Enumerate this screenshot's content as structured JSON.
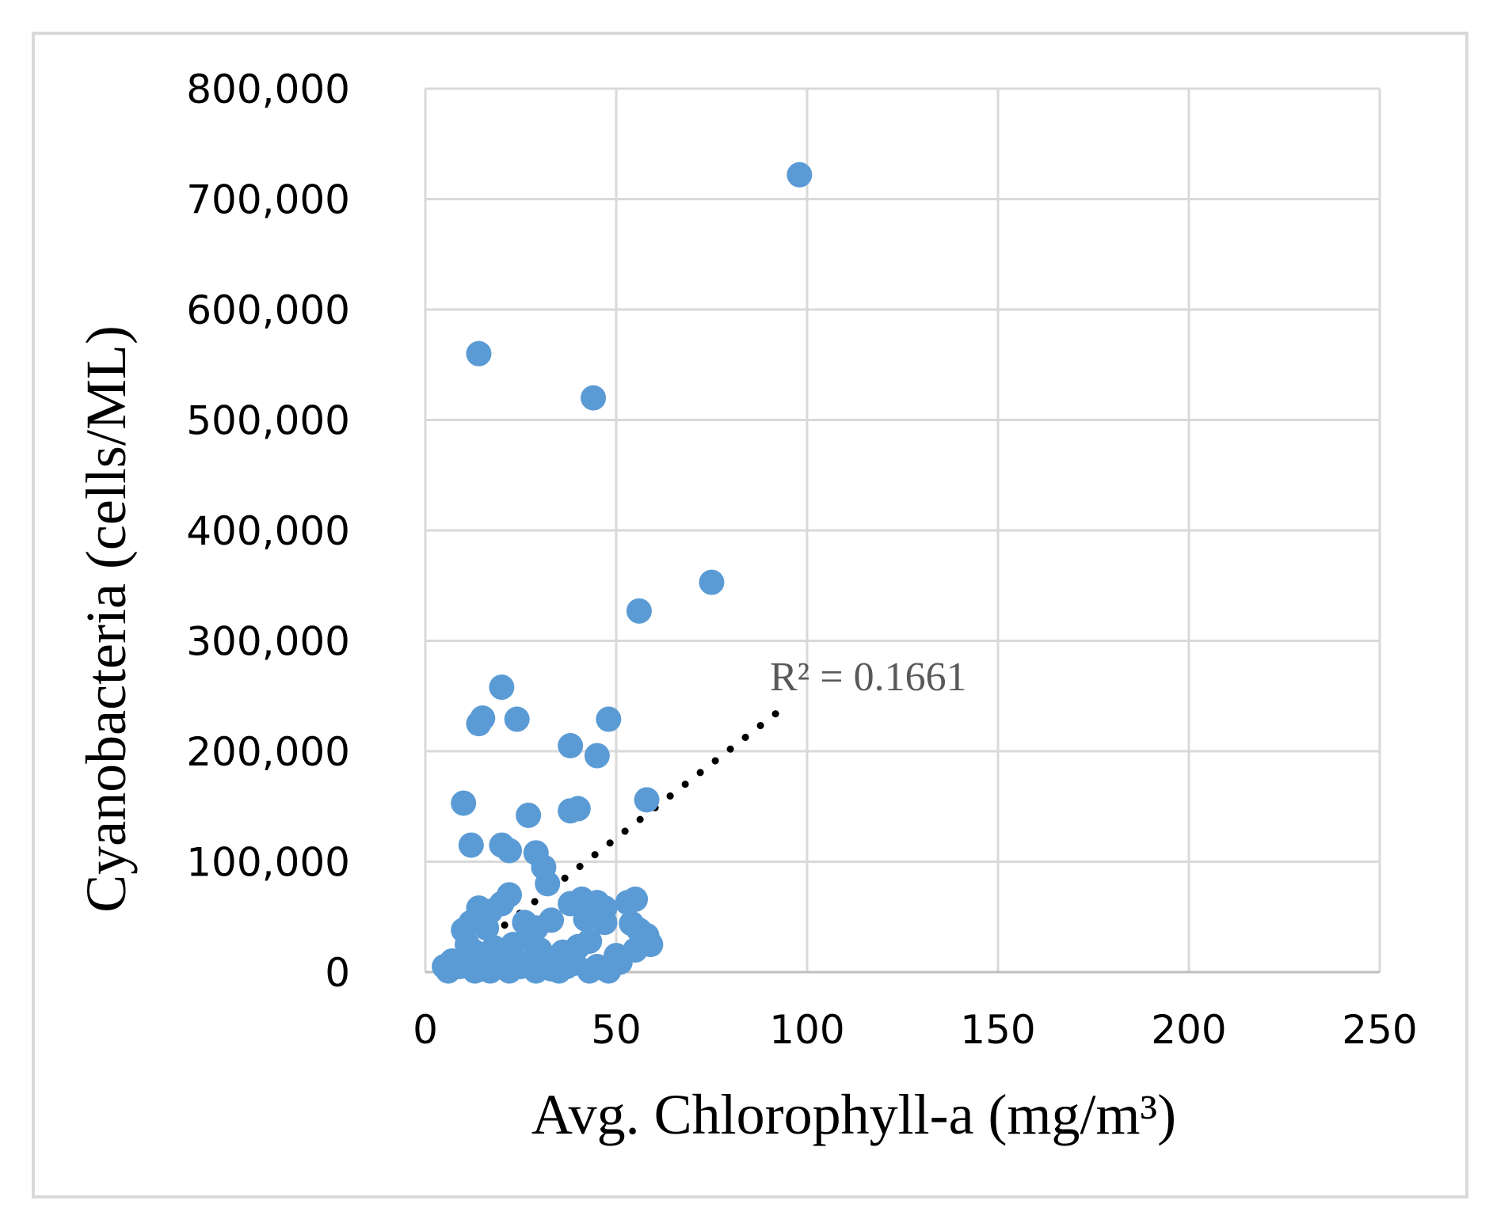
{
  "chart_data": {
    "type": "scatter",
    "title": "",
    "xlabel": "Avg. Chlorophyll-a (mg/m³)",
    "ylabel": "Cyanobacteria (cells/ML)",
    "xlim": [
      0,
      250
    ],
    "ylim": [
      0,
      800000
    ],
    "x_ticks": [
      0,
      50,
      100,
      150,
      200,
      250
    ],
    "y_ticks": [
      0,
      100000,
      200000,
      300000,
      400000,
      500000,
      600000,
      700000,
      800000
    ],
    "x_tick_labels": [
      "0",
      "50",
      "100",
      "150",
      "200",
      "250"
    ],
    "y_tick_labels": [
      "0",
      "100,000",
      "200,000",
      "300,000",
      "400,000",
      "500,000",
      "600,000",
      "700,000",
      "800,000"
    ],
    "grid": true,
    "marker_color": "#5b9bd5",
    "trendline": {
      "type": "linear",
      "style": "dotted",
      "color": "#000000",
      "x_start": 5,
      "x_end": 94,
      "y_start": 0,
      "y_end": 240000,
      "r2_label": "R² = 0.1661"
    },
    "series": [
      {
        "name": "Cyanobacteria",
        "points": [
          [
            98,
            722000
          ],
          [
            14,
            560000
          ],
          [
            44,
            520000
          ],
          [
            75,
            353000
          ],
          [
            56,
            327000
          ],
          [
            20,
            258000
          ],
          [
            14,
            225000
          ],
          [
            15,
            230000
          ],
          [
            24,
            229000
          ],
          [
            48,
            229000
          ],
          [
            38,
            205000
          ],
          [
            45,
            196000
          ],
          [
            10,
            153000
          ],
          [
            58,
            156000
          ],
          [
            27,
            142000
          ],
          [
            38,
            146000
          ],
          [
            40,
            148000
          ],
          [
            12,
            115000
          ],
          [
            20,
            115000
          ],
          [
            22,
            110000
          ],
          [
            29,
            108000
          ],
          [
            31,
            95000
          ],
          [
            32,
            80000
          ],
          [
            22,
            70000
          ],
          [
            20,
            62000
          ],
          [
            14,
            58000
          ],
          [
            17,
            55000
          ],
          [
            38,
            62000
          ],
          [
            41,
            66000
          ],
          [
            45,
            63000
          ],
          [
            47,
            58000
          ],
          [
            53,
            63000
          ],
          [
            55,
            66000
          ],
          [
            12,
            45000
          ],
          [
            10,
            38000
          ],
          [
            16,
            40000
          ],
          [
            26,
            45000
          ],
          [
            29,
            40000
          ],
          [
            33,
            47000
          ],
          [
            42,
            48000
          ],
          [
            47,
            45000
          ],
          [
            54,
            44000
          ],
          [
            56,
            38000
          ],
          [
            58,
            33000
          ],
          [
            59,
            25000
          ],
          [
            11,
            25000
          ],
          [
            13,
            18000
          ],
          [
            18,
            22000
          ],
          [
            23,
            25000
          ],
          [
            28,
            28000
          ],
          [
            30,
            20000
          ],
          [
            36,
            18000
          ],
          [
            40,
            23000
          ],
          [
            43,
            28000
          ],
          [
            50,
            15000
          ],
          [
            55,
            20000
          ],
          [
            7,
            10000
          ],
          [
            9,
            5000
          ],
          [
            12,
            8000
          ],
          [
            15,
            3000
          ],
          [
            18,
            5000
          ],
          [
            21,
            10000
          ],
          [
            25,
            5000
          ],
          [
            27,
            8000
          ],
          [
            31,
            10000
          ],
          [
            33,
            3000
          ],
          [
            37,
            5000
          ],
          [
            39,
            8000
          ],
          [
            45,
            5000
          ],
          [
            47,
            3000
          ],
          [
            49,
            6000
          ],
          [
            51,
            9000
          ],
          [
            5,
            5000
          ],
          [
            6,
            1000
          ],
          [
            13,
            1000
          ],
          [
            17,
            1000
          ],
          [
            22,
            1000
          ],
          [
            29,
            1000
          ],
          [
            35,
            1000
          ],
          [
            43,
            1000
          ],
          [
            48,
            1000
          ]
        ]
      }
    ]
  }
}
